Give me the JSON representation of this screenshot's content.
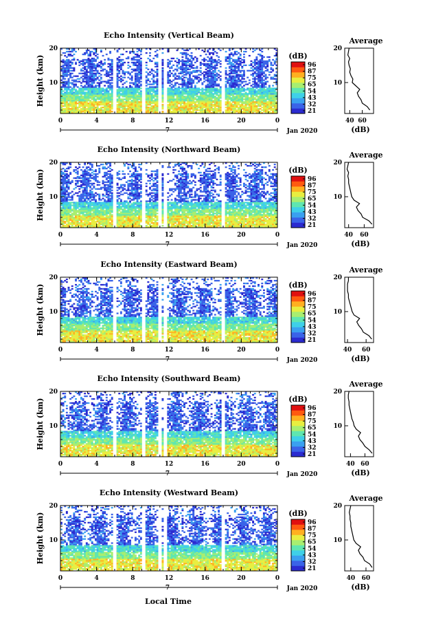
{
  "figure": {
    "xlabel": "Local Time",
    "day_label": "7",
    "date_label": "Jan 2020",
    "ylabel": "Height (km)",
    "average_title": "Average",
    "average_xlabel": "(dB)",
    "colorbar_label": "(dB)",
    "colorbar_ticks": [
      "96",
      "87",
      "75",
      "65",
      "54",
      "43",
      "32",
      "21"
    ]
  },
  "colors": {
    "scale": [
      "#2b2bd0",
      "#3a63e8",
      "#3aa0f0",
      "#3fd0e8",
      "#5fe6b0",
      "#a8ee70",
      "#e8ee40",
      "#ffb020",
      "#ff5a10",
      "#e01010"
    ]
  },
  "chart_data": [
    {
      "type": "heatmap",
      "title": "Echo Intensity (Vertical Beam)",
      "xlabel": "Local Time",
      "ylabel": "Height (km)",
      "x_ticks": [
        "0",
        "4",
        "8",
        "12",
        "16",
        "20",
        "0"
      ],
      "y_ticks": [
        "20",
        "10"
      ],
      "xlim": [
        0,
        24
      ],
      "ylim": [
        1,
        20
      ],
      "colorbar": {
        "label": "(dB)",
        "range": [
          21,
          96
        ]
      },
      "data_gaps_hours": [
        6.0,
        9.2,
        11.0,
        11.6,
        18.0
      ],
      "average_profile": {
        "title": "Average",
        "xlabel": "(dB)",
        "x_ticks": [
          "40",
          "60"
        ],
        "xlim": [
          32,
          78
        ],
        "heights": [
          2,
          3,
          4,
          5,
          6,
          7,
          8,
          9,
          10,
          11,
          12,
          13,
          14,
          15,
          16,
          17,
          18,
          19,
          20
        ],
        "values": [
          72,
          68,
          60,
          58,
          54,
          52,
          56,
          50,
          44,
          45,
          42,
          40,
          41,
          39,
          38,
          40,
          37,
          38,
          39
        ]
      }
    },
    {
      "type": "heatmap",
      "title": "Echo Intensity (Northward Beam)",
      "xlabel": "Local Time",
      "ylabel": "Height (km)",
      "x_ticks": [
        "0",
        "4",
        "8",
        "12",
        "16",
        "20",
        "0"
      ],
      "y_ticks": [
        "20",
        "10"
      ],
      "xlim": [
        0,
        24
      ],
      "ylim": [
        1,
        20
      ],
      "colorbar": {
        "label": "(dB)",
        "range": [
          21,
          96
        ]
      },
      "data_gaps_hours": [
        6.0,
        9.2,
        11.0,
        11.6,
        18.0
      ],
      "average_profile": {
        "title": "Average",
        "xlabel": "(dB)",
        "x_ticks": [
          "40",
          "60"
        ],
        "xlim": [
          35,
          72
        ],
        "heights": [
          2,
          3,
          4,
          5,
          6,
          7,
          8,
          9,
          10,
          11,
          12,
          13,
          14,
          15,
          16,
          17,
          18,
          19,
          20
        ],
        "values": [
          70,
          66,
          58,
          56,
          52,
          50,
          54,
          47,
          44,
          43,
          42,
          41,
          40,
          40,
          39,
          40,
          38,
          39,
          40
        ]
      }
    },
    {
      "type": "heatmap",
      "title": "Echo Intensity (Eastward Beam)",
      "xlabel": "Local Time",
      "ylabel": "Height (km)",
      "x_ticks": [
        "0",
        "4",
        "8",
        "12",
        "16",
        "20",
        "0"
      ],
      "y_ticks": [
        "20",
        "10"
      ],
      "xlim": [
        0,
        24
      ],
      "ylim": [
        1,
        20
      ],
      "colorbar": {
        "label": "(dB)",
        "range": [
          21,
          96
        ]
      },
      "data_gaps_hours": [
        6.0,
        9.2,
        11.0,
        11.6,
        18.0
      ],
      "average_profile": {
        "title": "Average",
        "xlabel": "(dB)",
        "x_ticks": [
          "40",
          "60"
        ],
        "xlim": [
          37,
          68
        ],
        "heights": [
          2,
          3,
          4,
          5,
          6,
          7,
          8,
          9,
          10,
          11,
          12,
          13,
          14,
          15,
          16,
          17,
          18,
          19,
          20
        ],
        "values": [
          66,
          63,
          57,
          55,
          52,
          50,
          53,
          47,
          45,
          44,
          43,
          42,
          41,
          41,
          40,
          40,
          40,
          41,
          41
        ]
      }
    },
    {
      "type": "heatmap",
      "title": "Echo Intensity (Southward Beam)",
      "xlabel": "Local Time",
      "ylabel": "Height (km)",
      "x_ticks": [
        "0",
        "4",
        "8",
        "12",
        "16",
        "20",
        "0"
      ],
      "y_ticks": [
        "20",
        "10"
      ],
      "xlim": [
        0,
        24
      ],
      "ylim": [
        1,
        20
      ],
      "colorbar": {
        "label": "(dB)",
        "range": [
          21,
          96
        ]
      },
      "data_gaps_hours": [
        6.0,
        9.2,
        11.0,
        11.6,
        18.0
      ],
      "average_profile": {
        "title": "Average",
        "xlabel": "(dB)",
        "x_ticks": [
          "40",
          "60"
        ],
        "xlim": [
          32,
          72
        ],
        "heights": [
          2,
          3,
          4,
          5,
          6,
          7,
          8,
          9,
          10,
          11,
          12,
          13,
          14,
          15,
          16,
          17,
          18,
          19,
          20
        ],
        "values": [
          70,
          66,
          60,
          57,
          53,
          51,
          54,
          48,
          45,
          44,
          42,
          41,
          40,
          39,
          38,
          38,
          37,
          37,
          38
        ]
      }
    },
    {
      "type": "heatmap",
      "title": "Echo Intensity (Westward Beam)",
      "xlabel": "Local Time",
      "ylabel": "Height (km)",
      "x_ticks": [
        "0",
        "4",
        "8",
        "12",
        "16",
        "20",
        "0"
      ],
      "y_ticks": [
        "20",
        "10"
      ],
      "xlim": [
        0,
        24
      ],
      "ylim": [
        1,
        20
      ],
      "colorbar": {
        "label": "(dB)",
        "range": [
          21,
          96
        ]
      },
      "data_gaps_hours": [
        6.0,
        9.2,
        11.0,
        11.6,
        18.0
      ],
      "average_profile": {
        "title": "Average",
        "xlabel": "(dB)",
        "x_ticks": [
          "40",
          "60"
        ],
        "xlim": [
          32,
          70
        ],
        "heights": [
          2,
          3,
          4,
          5,
          6,
          7,
          8,
          9,
          10,
          11,
          12,
          13,
          14,
          15,
          16,
          17,
          18,
          19,
          20
        ],
        "values": [
          68,
          65,
          58,
          56,
          52,
          50,
          53,
          47,
          44,
          43,
          42,
          41,
          40,
          40,
          39,
          39,
          38,
          39,
          40
        ]
      }
    }
  ]
}
